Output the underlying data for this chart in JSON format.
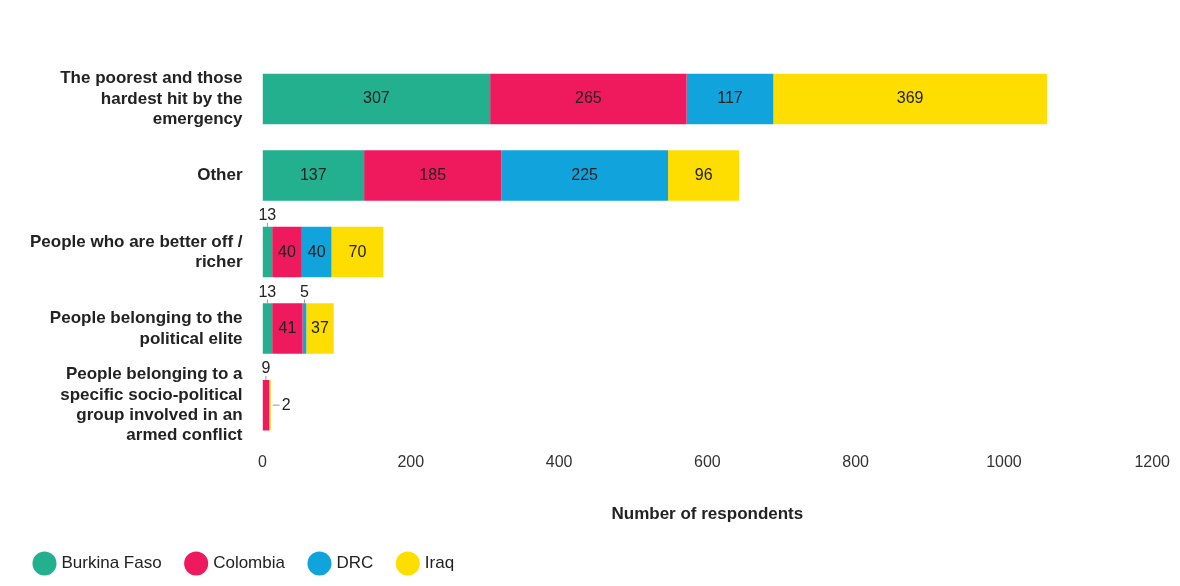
{
  "chart_data": {
    "type": "bar",
    "orientation": "horizontal",
    "stacked": true,
    "xlabel": "Number of respondents",
    "categories": [
      "The poorest and those hardest hit by the emergency",
      "Other",
      "People who are better off / richer",
      "People belonging to the political elite",
      "People belonging to a specific socio-political group involved in an armed conflict"
    ],
    "series": [
      {
        "name": "Burkina Faso",
        "color": "#22b08f",
        "values": [
          307,
          137,
          13,
          13,
          null
        ]
      },
      {
        "name": "Colombia",
        "color": "#ee1a5d",
        "values": [
          265,
          185,
          40,
          41,
          9
        ]
      },
      {
        "name": "DRC",
        "color": "#11a3dc",
        "values": [
          117,
          225,
          40,
          5,
          null
        ]
      },
      {
        "name": "Iraq",
        "color": "#fedd00",
        "values": [
          369,
          96,
          70,
          37,
          2
        ]
      }
    ],
    "xlim": [
      0,
      1200
    ],
    "xticks": [
      0,
      200,
      400,
      600,
      800,
      1000,
      1200
    ],
    "grid": false,
    "legend": "bottom",
    "data_labels": true
  }
}
